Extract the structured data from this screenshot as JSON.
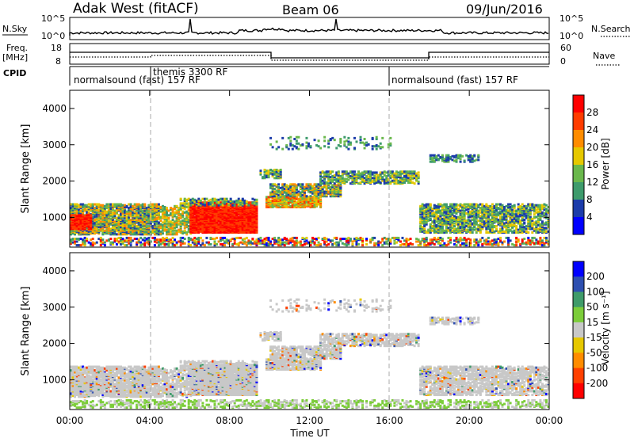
{
  "header": {
    "station": "Adak West (fitACF)",
    "beam": "Beam 06",
    "date": "09/Jun/2016"
  },
  "top_panels": {
    "nsky_label": "N.Sky",
    "nsky_ticks": [
      "10^5",
      "10^0"
    ],
    "nsearch_label": "N.Search",
    "nsearch_ticks": [
      "10^5",
      "10^0"
    ],
    "freq_label": "Freq.",
    "freq_unit": "[MHz]",
    "freq_ticks": [
      "18",
      "8"
    ],
    "nave_label": "Nave",
    "nave_ticks": [
      "60",
      "0"
    ],
    "cpid_label": "CPID",
    "cpid_segments": [
      {
        "start": 0,
        "end": 16,
        "label": "normalsound (fast) 157 RF"
      },
      {
        "start": 4,
        "end": 16,
        "label": "themis 3300 RF"
      },
      {
        "start": 16,
        "end": 24,
        "label": "normalsound (fast) 157 RF"
      }
    ]
  },
  "colors": {
    "power": [
      "#0000ff",
      "#1c3caa",
      "#3e9b6c",
      "#6ab84c",
      "#e6c800",
      "#ff8c00",
      "#ff3c00",
      "#ff0000"
    ],
    "velocity": [
      "#0000ff",
      "#2e4fb0",
      "#3f9b6a",
      "#7ccd3a",
      "#c8c8c8",
      "#e6c800",
      "#ff8c00",
      "#ff4000",
      "#ff0000"
    ]
  },
  "chart_data": [
    {
      "type": "heatmap",
      "title": "Power",
      "xlabel": "Time UT",
      "ylabel": "Slant Range [km]",
      "x_ticks": [
        "00:00",
        "04:00",
        "08:00",
        "12:00",
        "16:00",
        "20:00",
        "00:00"
      ],
      "y_ticks": [
        "4000",
        "3000",
        "2000",
        "1000"
      ],
      "xlim_hours": [
        0,
        24
      ],
      "ylim_km": [
        180,
        4500
      ],
      "colorbar_label": "Power [dB]",
      "colorbar_ticks": [
        "28",
        "24",
        "20",
        "16",
        "12",
        "8",
        "4"
      ]
    },
    {
      "type": "heatmap",
      "title": "Velocity",
      "xlabel": "Time UT",
      "ylabel": "Slant Range [km]",
      "x_ticks": [
        "00:00",
        "04:00",
        "08:00",
        "12:00",
        "16:00",
        "20:00",
        "00:00"
      ],
      "y_ticks": [
        "4000",
        "3000",
        "2000",
        "1000"
      ],
      "xlim_hours": [
        0,
        24
      ],
      "ylim_km": [
        180,
        4500
      ],
      "colorbar_label": "Velocity [m s⁻¹]",
      "colorbar_ticks": [
        "200",
        "100",
        "50",
        "15",
        "-15",
        "-50",
        "-100",
        "-200"
      ]
    }
  ]
}
